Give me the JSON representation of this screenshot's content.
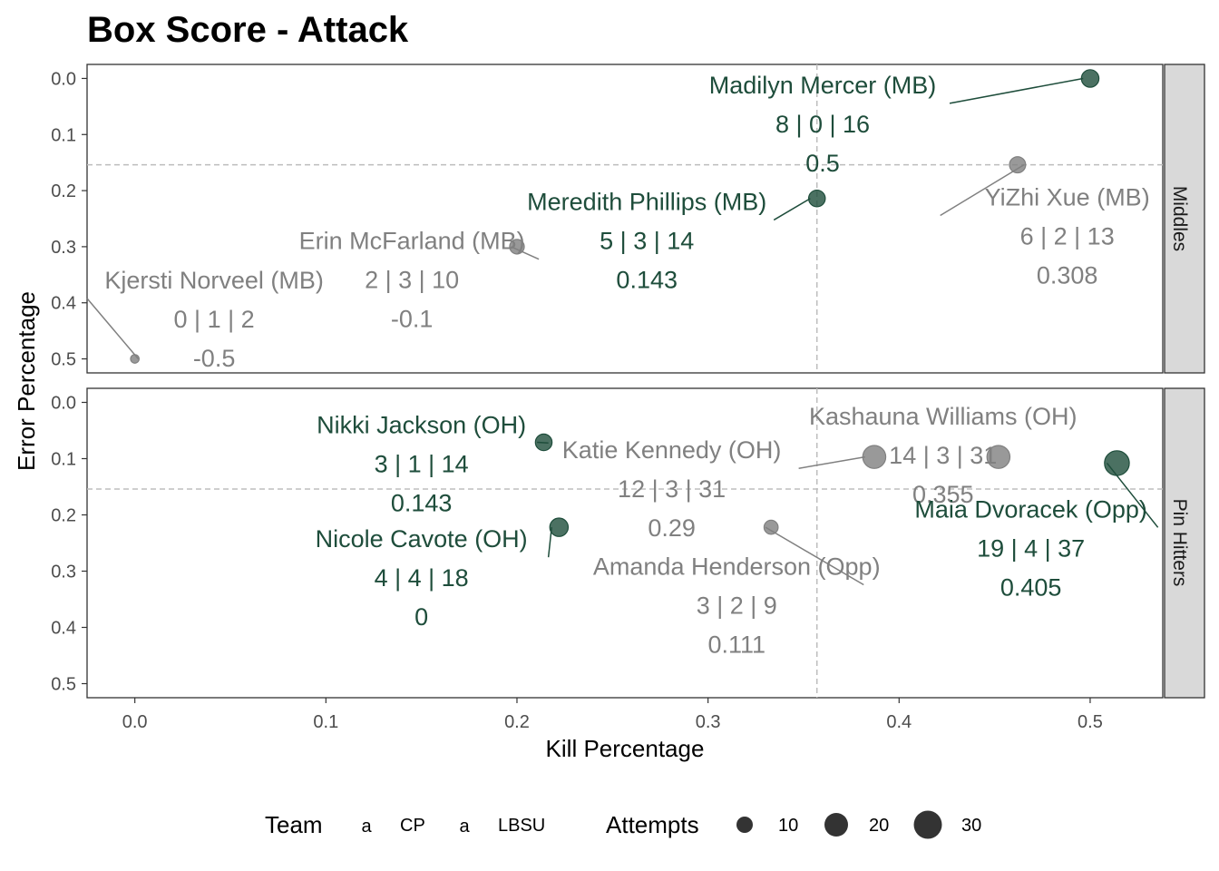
{
  "chart_data": {
    "type": "scatter",
    "title": "Box Score - Attack",
    "xlabel": "Kill Percentage",
    "ylabel": "Error Percentage",
    "xlim": [
      -0.025,
      0.538
    ],
    "ylim": [
      0.525,
      -0.025
    ],
    "x_ticks": [
      "0.0",
      "0.1",
      "0.2",
      "0.3",
      "0.4",
      "0.5"
    ],
    "y_ticks": [
      "0.0",
      "0.1",
      "0.2",
      "0.3",
      "0.4",
      "0.5"
    ],
    "grid": false,
    "teams": [
      {
        "name": "CP",
        "color": "#1e4d3b"
      },
      {
        "name": "LBSU",
        "color": "#808080"
      }
    ],
    "size_legend": {
      "title": "Attempts",
      "values": [
        "10",
        "20",
        "30"
      ]
    },
    "team_legend": {
      "title": "Team",
      "glyph": "a"
    },
    "facets": [
      {
        "name": "Middles",
        "ref_x": 0.357,
        "ref_y": 0.154,
        "points": [
          {
            "player": "Madilyn Mercer (MB)",
            "team": "CP",
            "x": 0.5,
            "y": 0.0,
            "stats": "8 | 0 | 16",
            "eff": "0.5",
            "attempts": 16,
            "lx": 0.36,
            "ly": 0.012
          },
          {
            "player": "YiZhi Xue (MB)",
            "team": "LBSU",
            "x": 0.462,
            "y": 0.154,
            "stats": "6 | 2 | 13",
            "eff": "0.308",
            "attempts": 13,
            "lx": 0.488,
            "ly": 0.212
          },
          {
            "player": "Meredith Phillips (MB)",
            "team": "CP",
            "x": 0.357,
            "y": 0.214,
            "stats": "5 | 3 | 14",
            "eff": "0.143",
            "attempts": 14,
            "lx": 0.268,
            "ly": 0.22
          },
          {
            "player": "Erin McFarland (MB)",
            "team": "LBSU",
            "x": 0.2,
            "y": 0.3,
            "stats": "2 | 3 | 10",
            "eff": "-0.1",
            "attempts": 10,
            "lx": 0.145,
            "ly": 0.29
          },
          {
            "player": "Kjersti Norveel (MB)",
            "team": "LBSU",
            "x": 0.0,
            "y": 0.5,
            "stats": "0 | 1 | 2",
            "eff": "-0.5",
            "attempts": 2,
            "lx": 0.0415,
            "ly": 0.36
          }
        ]
      },
      {
        "name": "Pin Hitters",
        "ref_x": 0.357,
        "ref_y": 0.154,
        "points": [
          {
            "player": "Nikki Jackson (OH)",
            "team": "CP",
            "x": 0.214,
            "y": 0.071,
            "stats": "3 | 1 | 14",
            "eff": "0.143",
            "attempts": 14,
            "lx": 0.15,
            "ly": 0.04
          },
          {
            "player": "Katie Kennedy (OH)",
            "team": "LBSU",
            "x": 0.387,
            "y": 0.097,
            "stats": "12 | 3 | 31",
            "eff": "0.29",
            "attempts": 31,
            "lx": 0.281,
            "ly": 0.085
          },
          {
            "player": "Kashauna Williams (OH)",
            "team": "LBSU",
            "x": 0.452,
            "y": 0.097,
            "stats": "14 | 3 | 31",
            "eff": "0.355",
            "attempts": 31,
            "lx": 0.423,
            "ly": 0.025
          },
          {
            "player": "Maia Dvoracek (Opp)",
            "team": "CP",
            "x": 0.514,
            "y": 0.108,
            "stats": "19 | 4 | 37",
            "eff": "0.405",
            "attempts": 37,
            "lx": 0.469,
            "ly": 0.19
          },
          {
            "player": "Nicole Cavote (OH)",
            "team": "CP",
            "x": 0.222,
            "y": 0.222,
            "stats": "4 | 4 | 18",
            "eff": "0",
            "attempts": 18,
            "lx": 0.15,
            "ly": 0.243
          },
          {
            "player": "Amanda Henderson (Opp)",
            "team": "LBSU",
            "x": 0.333,
            "y": 0.222,
            "stats": "3 | 2 | 9",
            "eff": "0.111",
            "attempts": 9,
            "lx": 0.315,
            "ly": 0.292
          }
        ]
      }
    ]
  }
}
